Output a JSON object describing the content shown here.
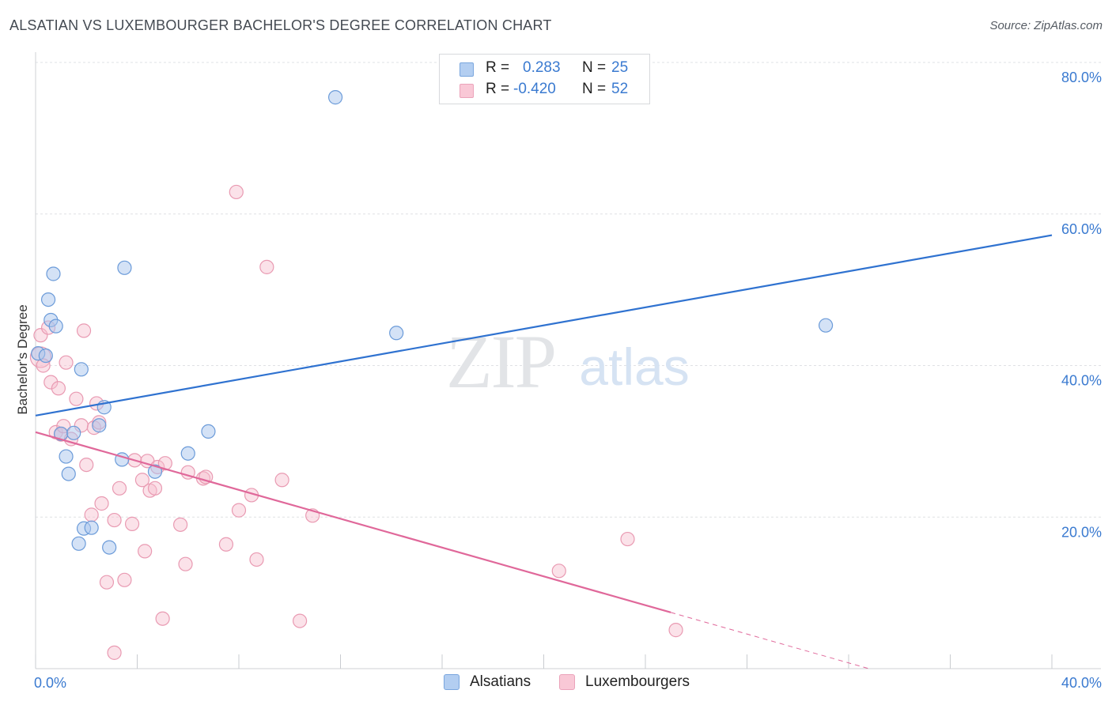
{
  "header": {
    "title": "ALSATIAN VS LUXEMBOURGER BACHELOR'S DEGREE CORRELATION CHART",
    "source": "Source: ZipAtlas.com"
  },
  "watermark": {
    "zip": "ZIP",
    "atlas": "atlas"
  },
  "legend": {
    "rows": [
      {
        "r_label": "R =",
        "r_value": "0.283",
        "n_label": "N =",
        "n_value": "25"
      },
      {
        "r_label": "R =",
        "r_value": "-0.420",
        "n_label": "N =",
        "n_value": "52"
      }
    ]
  },
  "bottom_legend": {
    "alsatians": "Alsatians",
    "luxembourgers": "Luxembourgers"
  },
  "chart_data": {
    "type": "scatter",
    "title": "ALSATIAN VS LUXEMBOURGER BACHELOR'S DEGREE CORRELATION CHART",
    "xlabel": "",
    "ylabel": "Bachelor's Degree",
    "xlim": [
      0,
      40
    ],
    "ylim": [
      0,
      80
    ],
    "x_tick_labels": [
      "0.0%",
      "40.0%"
    ],
    "y_ticks": [
      20,
      40,
      60,
      80
    ],
    "y_tick_labels": [
      "20.0%",
      "40.0%",
      "60.0%",
      "80.0%"
    ],
    "grid": true,
    "colors": {
      "alsatians_fill": "#a9c6ee",
      "alsatians_stroke": "#6b9bd9",
      "alsatians_line": "#2f72d0",
      "lux_fill": "#f7bfcf",
      "lux_stroke": "#e99ab2",
      "lux_line": "#e0689a"
    },
    "series": [
      {
        "name": "Alsatians",
        "r": 0.283,
        "n": 25,
        "trend": {
          "x0": 0,
          "y0": 33.4,
          "x1": 40,
          "y1": 57.2,
          "dashed_from": null
        },
        "points": [
          [
            0.1,
            41.6
          ],
          [
            0.4,
            41.3
          ],
          [
            0.5,
            48.7
          ],
          [
            0.6,
            46.0
          ],
          [
            0.7,
            52.1
          ],
          [
            0.8,
            45.2
          ],
          [
            1.0,
            31.0
          ],
          [
            1.2,
            28.0
          ],
          [
            1.3,
            25.7
          ],
          [
            1.7,
            16.5
          ],
          [
            1.9,
            18.5
          ],
          [
            2.2,
            18.6
          ],
          [
            1.8,
            39.5
          ],
          [
            1.5,
            31.1
          ],
          [
            2.5,
            32.1
          ],
          [
            2.7,
            34.5
          ],
          [
            2.9,
            16.0
          ],
          [
            3.4,
            27.6
          ],
          [
            3.5,
            52.9
          ],
          [
            4.7,
            26.0
          ],
          [
            6.0,
            28.4
          ],
          [
            6.8,
            31.3
          ],
          [
            11.8,
            75.4
          ],
          [
            14.2,
            44.3
          ],
          [
            31.1,
            45.3
          ]
        ]
      },
      {
        "name": "Luxembourgers",
        "r": -0.42,
        "n": 52,
        "trend": {
          "x0": 0,
          "y0": 31.2,
          "x1": 32.8,
          "y1": 0,
          "solid_until": 25.0
        },
        "points": [
          [
            0.2,
            41.1
          ],
          [
            0.2,
            44.0
          ],
          [
            0.3,
            40.0
          ],
          [
            0.5,
            45.0
          ],
          [
            0.6,
            37.8
          ],
          [
            0.8,
            31.2
          ],
          [
            0.9,
            37.0
          ],
          [
            1.0,
            30.9
          ],
          [
            1.1,
            32.0
          ],
          [
            1.2,
            40.4
          ],
          [
            1.4,
            30.3
          ],
          [
            1.6,
            35.6
          ],
          [
            1.8,
            32.1
          ],
          [
            1.9,
            44.6
          ],
          [
            2.0,
            26.9
          ],
          [
            2.2,
            20.3
          ],
          [
            2.3,
            31.8
          ],
          [
            2.4,
            35.0
          ],
          [
            2.5,
            32.5
          ],
          [
            2.6,
            21.8
          ],
          [
            2.8,
            11.4
          ],
          [
            3.1,
            2.1
          ],
          [
            3.1,
            19.6
          ],
          [
            3.3,
            23.8
          ],
          [
            3.5,
            11.7
          ],
          [
            3.8,
            19.1
          ],
          [
            3.9,
            27.5
          ],
          [
            4.2,
            24.9
          ],
          [
            4.3,
            15.5
          ],
          [
            4.4,
            27.4
          ],
          [
            4.5,
            23.5
          ],
          [
            4.7,
            23.8
          ],
          [
            4.8,
            26.6
          ],
          [
            5.0,
            6.6
          ],
          [
            5.1,
            27.1
          ],
          [
            5.7,
            19.0
          ],
          [
            5.9,
            13.8
          ],
          [
            6.0,
            25.9
          ],
          [
            6.6,
            25.1
          ],
          [
            6.7,
            25.3
          ],
          [
            7.5,
            16.4
          ],
          [
            7.9,
            62.9
          ],
          [
            8.0,
            20.9
          ],
          [
            8.5,
            22.9
          ],
          [
            8.7,
            14.4
          ],
          [
            9.1,
            53.0
          ],
          [
            9.7,
            24.9
          ],
          [
            10.4,
            6.3
          ],
          [
            10.9,
            20.2
          ],
          [
            20.6,
            12.9
          ],
          [
            23.3,
            17.1
          ],
          [
            25.2,
            5.1
          ]
        ]
      }
    ]
  }
}
